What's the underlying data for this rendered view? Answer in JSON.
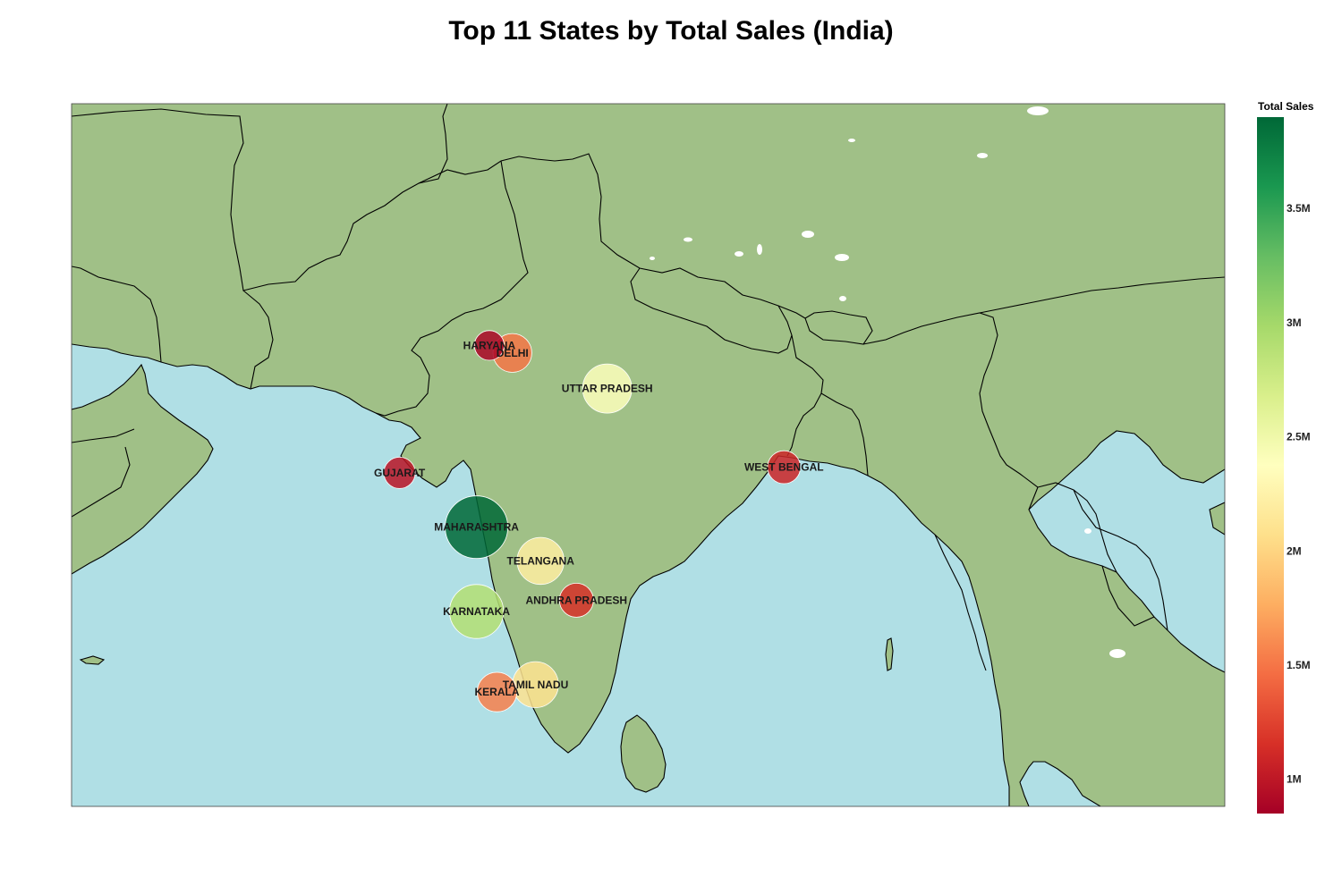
{
  "title": "Top 11 States by Total Sales (India)",
  "colors": {
    "ocean": "#b0dfe5",
    "land": "#a0c087",
    "border": "#000000",
    "lakes": "#ffffff"
  },
  "colorbar": {
    "title": "Total Sales",
    "min": 850000,
    "max": 3900000,
    "ticks": [
      {
        "value": 1000000,
        "label": "1M"
      },
      {
        "value": 1500000,
        "label": "1.5M"
      },
      {
        "value": 2000000,
        "label": "2M"
      },
      {
        "value": 2500000,
        "label": "2.5M"
      },
      {
        "value": 3000000,
        "label": "3M"
      },
      {
        "value": 3500000,
        "label": "3.5M"
      }
    ],
    "colorscale": [
      "#a50026",
      "#d73027",
      "#f46d43",
      "#fdae61",
      "#fee08b",
      "#ffffbf",
      "#d9ef8b",
      "#a6d96a",
      "#66bd63",
      "#1a9850",
      "#006837"
    ]
  },
  "chart_data": {
    "type": "bubble-map",
    "region": "India",
    "size_and_color": "Total Sales",
    "points": [
      {
        "state": "MAHARASHTRA",
        "lat": 19.4,
        "lon": 75.8,
        "sales": 3900000
      },
      {
        "state": "KARNATAKA",
        "lat": 14.9,
        "lon": 75.8,
        "sales": 2900000
      },
      {
        "state": "UTTAR PRADESH",
        "lat": 26.8,
        "lon": 80.9,
        "sales": 2400000
      },
      {
        "state": "TELANGANA",
        "lat": 17.6,
        "lon": 78.3,
        "sales": 2200000
      },
      {
        "state": "TAMIL NADU",
        "lat": 11.0,
        "lon": 78.1,
        "sales": 2100000
      },
      {
        "state": "KERALA",
        "lat": 10.6,
        "lon": 76.6,
        "sales": 1550000
      },
      {
        "state": "DELHI",
        "lat": 28.7,
        "lon": 77.2,
        "sales": 1500000
      },
      {
        "state": "ANDHRA PRADESH",
        "lat": 15.5,
        "lon": 79.7,
        "sales": 1150000
      },
      {
        "state": "WEST BENGAL",
        "lat": 22.6,
        "lon": 87.8,
        "sales": 1080000
      },
      {
        "state": "GUJARAT",
        "lat": 22.3,
        "lon": 72.8,
        "sales": 980000
      },
      {
        "state": "HARYANA",
        "lat": 29.1,
        "lon": 76.3,
        "sales": 880000
      }
    ]
  }
}
